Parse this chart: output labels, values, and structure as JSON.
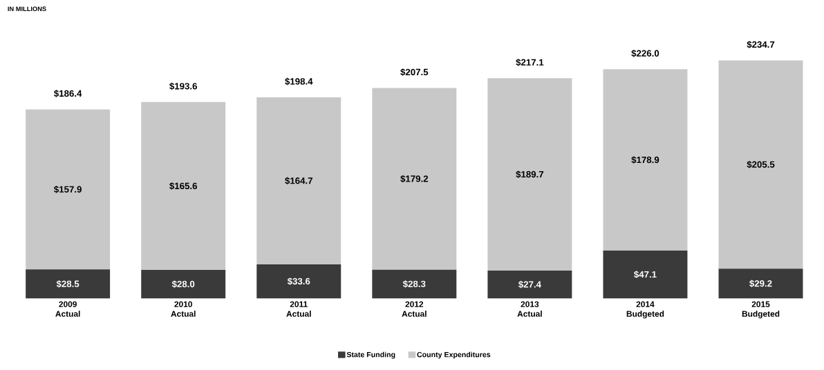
{
  "chart_data": {
    "type": "bar",
    "stacked": true,
    "annotations": [
      "IN MILLIONS"
    ],
    "categories": [
      "2009 Actual",
      "2010 Actual",
      "2011 Actual",
      "2012 Actual",
      "2013 Actual",
      "2014 Budgeted",
      "2015 Budgeted"
    ],
    "series": [
      {
        "name": "State Funding",
        "color": "#3a3a3a",
        "values": [
          28.5,
          28.0,
          33.6,
          28.3,
          27.4,
          47.1,
          29.2
        ],
        "value_labels": [
          "$28.5",
          "$28.0",
          "$33.6",
          "$28.3",
          "$27.4",
          "$47.1",
          "$29.2"
        ]
      },
      {
        "name": "County Expenditures",
        "color": "#c8c8c8",
        "values": [
          157.9,
          165.6,
          164.7,
          179.2,
          189.7,
          178.9,
          205.5
        ],
        "value_labels": [
          "$157.9",
          "$165.6",
          "$164.7",
          "$179.2",
          "$189.7",
          "$178.9",
          "$205.5"
        ]
      }
    ],
    "totals": [
      "$186.4",
      "$193.6",
      "$198.4",
      "$207.5",
      "$217.1",
      "$226.0",
      "$234.7"
    ],
    "legend": "bottom"
  }
}
